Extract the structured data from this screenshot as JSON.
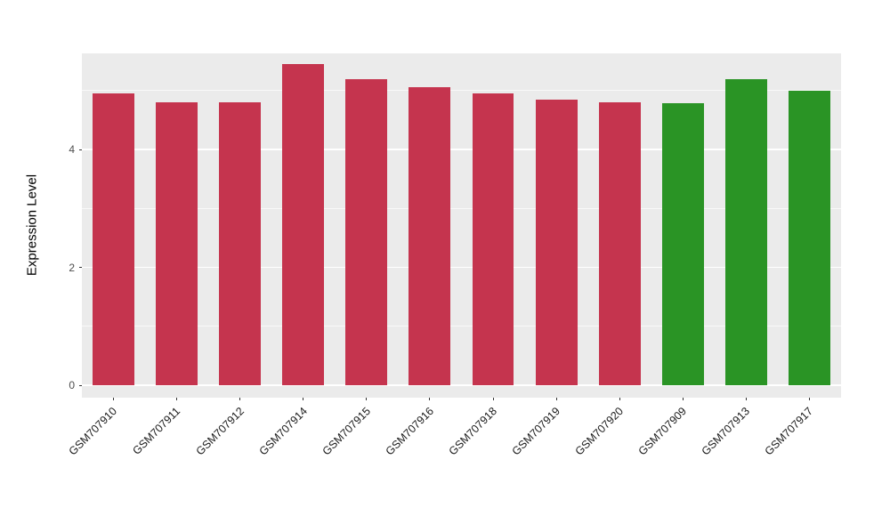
{
  "chart_data": {
    "type": "bar",
    "title": "",
    "xlabel": "",
    "ylabel": "Expression Level",
    "categories": [
      "GSM707910",
      "GSM707911",
      "GSM707912",
      "GSM707914",
      "GSM707915",
      "GSM707916",
      "GSM707918",
      "GSM707919",
      "GSM707920",
      "GSM707909",
      "GSM707913",
      "GSM707917"
    ],
    "values": [
      4.95,
      4.8,
      4.8,
      5.45,
      5.2,
      5.05,
      4.95,
      4.85,
      4.8,
      4.78,
      5.2,
      5.0
    ],
    "bar_colors": [
      "#C5344E",
      "#C5344E",
      "#C5344E",
      "#C5344E",
      "#C5344E",
      "#C5344E",
      "#C5344E",
      "#C5344E",
      "#C5344E",
      "#2A9425",
      "#2A9425",
      "#2A9425"
    ],
    "group_color_red": "#C5344E",
    "group_color_green": "#2A9425",
    "ylim": [
      0,
      5.63
    ],
    "yticks": [
      0,
      2,
      4
    ],
    "ytick_labels": [
      "0",
      "2",
      "4"
    ],
    "yticks_minor": [
      1,
      3,
      5
    ],
    "grid": true,
    "legend": "none",
    "panel_background": "#EBEBEB",
    "grid_color": "#FFFFFF",
    "tick_label_color": "#4D4D4D"
  }
}
